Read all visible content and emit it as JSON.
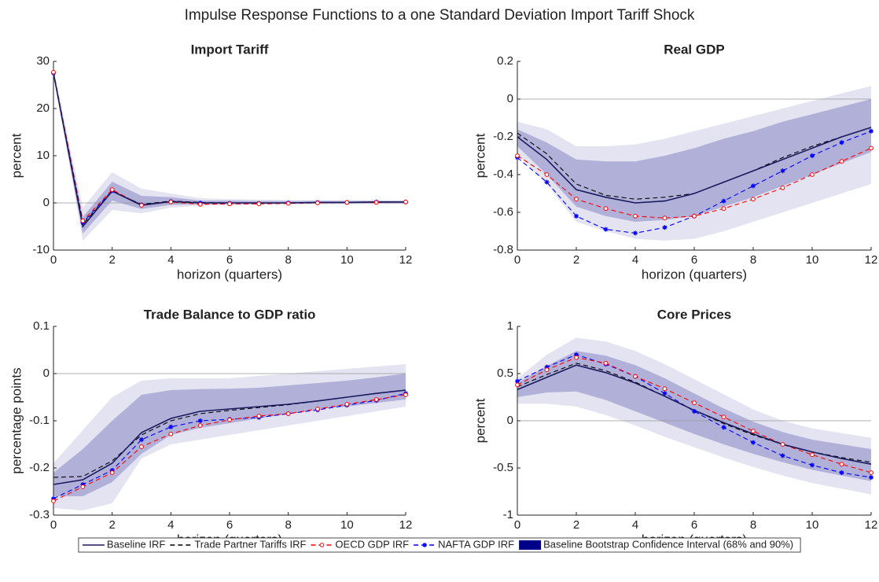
{
  "title": "Impulse Response Functions to a one Standard Deviation Import Tariff Shock",
  "legend": {
    "position": "bottom",
    "entries": [
      {
        "name": "Baseline IRF",
        "color": "#1a1a5e",
        "style": "solid",
        "marker": "none"
      },
      {
        "name": "Trade Partner Tariffs IRF",
        "color": "#000000",
        "style": "dashed",
        "marker": "none"
      },
      {
        "name": "OECD GDP IRF",
        "color": "#ff0000",
        "style": "dashed",
        "marker": "circle"
      },
      {
        "name": "NAFTA GDP IRF",
        "color": "#0000ff",
        "style": "dashed",
        "marker": "asterisk"
      }
    ],
    "band": {
      "name": "Baseline Bootstrap Confidence Interval (68% and 90%)",
      "color": "#00008b",
      "fill_68": "#b0b0d9",
      "fill_90": "#e3e3f1"
    }
  },
  "chart_data": [
    {
      "type": "line",
      "title": "Import Tariff",
      "xlabel": "horizon (quarters)",
      "ylabel": "percent",
      "x": [
        0,
        1,
        2,
        3,
        4,
        5,
        6,
        7,
        8,
        9,
        10,
        11,
        12
      ],
      "xlim": [
        0,
        12
      ],
      "xticks": [
        0,
        2,
        4,
        6,
        8,
        10,
        12
      ],
      "ylim": [
        -10,
        30
      ],
      "yticks": [
        -10,
        0,
        10,
        20,
        30
      ],
      "zero_line": true,
      "series": [
        {
          "values": [
            27.5,
            -5,
            2.5,
            -0.5,
            0.3,
            0,
            0,
            0,
            0,
            0.1,
            0.1,
            0.2,
            0.2
          ]
        },
        {
          "values": [
            27.8,
            -4.5,
            2.4,
            -0.3,
            0.4,
            0.1,
            0,
            0,
            0,
            0.1,
            0.1,
            0.2,
            0.2
          ]
        },
        {
          "values": [
            27.7,
            -3.8,
            2.8,
            -0.5,
            0.2,
            -0.3,
            -0.2,
            -0.2,
            -0.1,
            0,
            0.1,
            0.1,
            0.2
          ]
        },
        {
          "values": [
            27.5,
            -4.2,
            2.6,
            -0.4,
            0.3,
            0,
            -0.1,
            -0.1,
            0,
            0.1,
            0.1,
            0.2,
            0.2
          ]
        }
      ],
      "band_90": {
        "lower": [
          27,
          -8,
          -1.5,
          -2.2,
          -1,
          -0.6,
          -0.5,
          -0.4,
          -0.3,
          -0.3,
          -0.3,
          -0.2,
          -0.2
        ],
        "upper": [
          28.5,
          -1,
          6.5,
          3,
          2,
          1,
          0.8,
          0.7,
          0.6,
          0.6,
          0.6,
          0.6,
          0.6
        ]
      },
      "band_68": {
        "lower": [
          27.2,
          -6.5,
          0.5,
          -1.3,
          -0.4,
          -0.3,
          -0.2,
          -0.2,
          -0.1,
          -0.1,
          -0.1,
          -0.1,
          -0.1
        ],
        "upper": [
          28,
          -3,
          4.5,
          1.5,
          1.2,
          0.5,
          0.5,
          0.4,
          0.4,
          0.4,
          0.4,
          0.4,
          0.4
        ]
      }
    },
    {
      "type": "line",
      "title": "Real GDP",
      "xlabel": "horizon (quarters)",
      "ylabel": "percent",
      "x": [
        0,
        1,
        2,
        3,
        4,
        5,
        6,
        7,
        8,
        9,
        10,
        11,
        12
      ],
      "xlim": [
        0,
        12
      ],
      "xticks": [
        0,
        2,
        4,
        6,
        8,
        10,
        12
      ],
      "ylim": [
        -0.8,
        0.2
      ],
      "yticks": [
        -0.8,
        -0.6,
        -0.4,
        -0.2,
        0,
        0.2
      ],
      "zero_line": true,
      "series": [
        {
          "values": [
            -0.2,
            -0.32,
            -0.48,
            -0.52,
            -0.55,
            -0.54,
            -0.5,
            -0.44,
            -0.38,
            -0.32,
            -0.26,
            -0.2,
            -0.15
          ]
        },
        {
          "values": [
            -0.18,
            -0.29,
            -0.45,
            -0.51,
            -0.53,
            -0.52,
            -0.5,
            -0.44,
            -0.38,
            -0.31,
            -0.25,
            -0.2,
            -0.15
          ]
        },
        {
          "values": [
            -0.3,
            -0.4,
            -0.53,
            -0.58,
            -0.62,
            -0.63,
            -0.62,
            -0.58,
            -0.53,
            -0.47,
            -0.4,
            -0.33,
            -0.26
          ]
        },
        {
          "values": [
            -0.31,
            -0.44,
            -0.62,
            -0.69,
            -0.71,
            -0.68,
            -0.62,
            -0.54,
            -0.46,
            -0.38,
            -0.3,
            -0.23,
            -0.17
          ]
        }
      ],
      "band_90": {
        "lower": [
          -0.29,
          -0.45,
          -0.65,
          -0.7,
          -0.74,
          -0.75,
          -0.74,
          -0.7,
          -0.65,
          -0.6,
          -0.55,
          -0.5,
          -0.45
        ],
        "upper": [
          -0.12,
          -0.16,
          -0.25,
          -0.25,
          -0.24,
          -0.21,
          -0.17,
          -0.13,
          -0.09,
          -0.05,
          -0.01,
          0.03,
          0.07
        ]
      },
      "band_68": {
        "lower": [
          -0.25,
          -0.4,
          -0.57,
          -0.62,
          -0.65,
          -0.64,
          -0.62,
          -0.57,
          -0.52,
          -0.46,
          -0.4,
          -0.34,
          -0.28
        ],
        "upper": [
          -0.16,
          -0.23,
          -0.32,
          -0.33,
          -0.33,
          -0.3,
          -0.26,
          -0.21,
          -0.17,
          -0.12,
          -0.08,
          -0.04,
          0
        ]
      }
    },
    {
      "type": "line",
      "title": "Trade Balance to GDP ratio",
      "xlabel": "horizon (quarters)",
      "ylabel": "percentage points",
      "x": [
        0,
        1,
        2,
        3,
        4,
        5,
        6,
        7,
        8,
        9,
        10,
        11,
        12
      ],
      "xlim": [
        0,
        12
      ],
      "xticks": [
        0,
        2,
        4,
        6,
        8,
        10,
        12
      ],
      "ylim": [
        -0.3,
        0.1
      ],
      "yticks": [
        -0.3,
        -0.2,
        -0.1,
        0,
        0.1
      ],
      "zero_line": true,
      "series": [
        {
          "values": [
            -0.235,
            -0.225,
            -0.19,
            -0.125,
            -0.095,
            -0.08,
            -0.075,
            -0.07,
            -0.065,
            -0.058,
            -0.05,
            -0.042,
            -0.035
          ]
        },
        {
          "values": [
            -0.22,
            -0.218,
            -0.185,
            -0.13,
            -0.1,
            -0.085,
            -0.078,
            -0.072,
            -0.066,
            -0.058,
            -0.05,
            -0.042,
            -0.035
          ]
        },
        {
          "values": [
            -0.27,
            -0.24,
            -0.21,
            -0.155,
            -0.128,
            -0.11,
            -0.098,
            -0.09,
            -0.085,
            -0.075,
            -0.065,
            -0.055,
            -0.045
          ]
        },
        {
          "values": [
            -0.265,
            -0.235,
            -0.205,
            -0.14,
            -0.113,
            -0.1,
            -0.097,
            -0.093,
            -0.085,
            -0.077,
            -0.067,
            -0.057,
            -0.042
          ]
        }
      ],
      "band_90": {
        "lower": [
          -0.285,
          -0.29,
          -0.275,
          -0.18,
          -0.15,
          -0.14,
          -0.13,
          -0.12,
          -0.11,
          -0.1,
          -0.09,
          -0.08,
          -0.07
        ],
        "upper": [
          -0.19,
          -0.12,
          -0.05,
          -0.015,
          -0.01,
          -0.01,
          -0.01,
          -0.005,
          0,
          0.005,
          0.01,
          0.015,
          0.02
        ]
      },
      "band_68": {
        "lower": [
          -0.26,
          -0.26,
          -0.23,
          -0.17,
          -0.13,
          -0.115,
          -0.105,
          -0.095,
          -0.085,
          -0.075,
          -0.07,
          -0.062,
          -0.055
        ],
        "upper": [
          -0.21,
          -0.16,
          -0.1,
          -0.045,
          -0.035,
          -0.033,
          -0.032,
          -0.03,
          -0.025,
          -0.02,
          -0.015,
          -0.008,
          0
        ]
      }
    },
    {
      "type": "line",
      "title": "Core Prices",
      "xlabel": "horizon (quarters)",
      "ylabel": "percent",
      "x": [
        0,
        1,
        2,
        3,
        4,
        5,
        6,
        7,
        8,
        9,
        10,
        11,
        12
      ],
      "xlim": [
        0,
        12
      ],
      "xticks": [
        0,
        2,
        4,
        6,
        8,
        10,
        12
      ],
      "ylim": [
        -1,
        1
      ],
      "yticks": [
        -1,
        -0.5,
        0,
        0.5,
        1
      ],
      "zero_line": true,
      "series": [
        {
          "values": [
            0.33,
            0.46,
            0.59,
            0.51,
            0.4,
            0.26,
            0.11,
            -0.02,
            -0.14,
            -0.25,
            -0.33,
            -0.4,
            -0.46
          ]
        },
        {
          "values": [
            0.36,
            0.49,
            0.61,
            0.53,
            0.41,
            0.26,
            0.11,
            -0.03,
            -0.15,
            -0.25,
            -0.33,
            -0.39,
            -0.44
          ]
        },
        {
          "values": [
            0.38,
            0.54,
            0.67,
            0.61,
            0.47,
            0.34,
            0.19,
            0.04,
            -0.11,
            -0.25,
            -0.36,
            -0.46,
            -0.55
          ]
        },
        {
          "values": [
            0.42,
            0.57,
            0.7,
            0.6,
            0.47,
            0.29,
            0.1,
            -0.07,
            -0.23,
            -0.37,
            -0.47,
            -0.55,
            -0.6
          ]
        }
      ],
      "band_90": {
        "lower": [
          0.18,
          0.18,
          0.15,
          0.06,
          -0.05,
          -0.17,
          -0.28,
          -0.39,
          -0.49,
          -0.58,
          -0.66,
          -0.72,
          -0.78
        ],
        "upper": [
          0.45,
          0.7,
          0.88,
          0.84,
          0.74,
          0.6,
          0.44,
          0.28,
          0.12,
          0,
          -0.08,
          -0.13,
          -0.18
        ]
      },
      "band_68": {
        "lower": [
          0.25,
          0.3,
          0.31,
          0.22,
          0.1,
          -0.02,
          -0.14,
          -0.25,
          -0.35,
          -0.44,
          -0.52,
          -0.58,
          -0.64
        ],
        "upper": [
          0.4,
          0.58,
          0.74,
          0.69,
          0.59,
          0.45,
          0.29,
          0.13,
          -0.01,
          -0.12,
          -0.2,
          -0.25,
          -0.3
        ]
      }
    }
  ]
}
